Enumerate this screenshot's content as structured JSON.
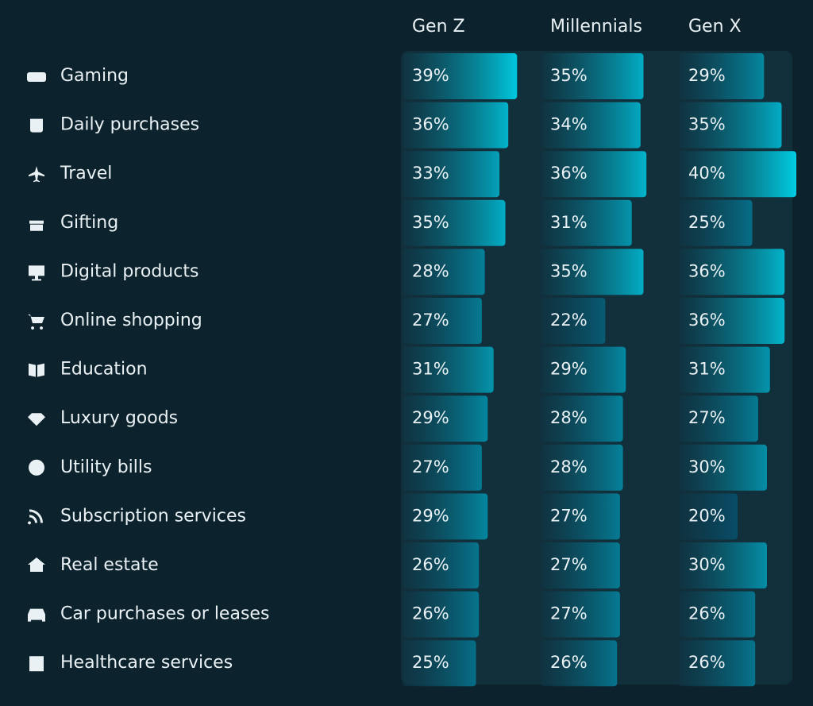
{
  "chart_data": {
    "type": "bar",
    "categories": [
      "Gaming",
      "Daily purchases",
      "Travel",
      "Gifting",
      "Digital products",
      "Online shopping",
      "Education",
      "Luxury goods",
      "Utility bills",
      "Subscription services",
      "Real estate",
      "Car purchases or leases",
      "Healthcare services"
    ],
    "series": [
      {
        "name": "Gen Z",
        "values": [
          39,
          36,
          33,
          35,
          28,
          27,
          31,
          29,
          27,
          29,
          26,
          26,
          25
        ],
        "value_labels": [
          "39%",
          "36%",
          "33%",
          "35%",
          "28%",
          "27%",
          "31%",
          "29%",
          "27%",
          "29%",
          "26%",
          "26%",
          "25%"
        ]
      },
      {
        "name": "Millennials",
        "values": [
          35,
          34,
          36,
          31,
          35,
          22,
          29,
          28,
          28,
          27,
          27,
          27,
          26
        ],
        "value_labels": [
          "35%",
          "34%",
          "36%",
          "31%",
          "35%",
          "22%",
          "29%",
          "28%",
          "28%",
          "27%",
          "27%",
          "27%",
          "26%"
        ]
      },
      {
        "name": "Gen X",
        "values": [
          29,
          35,
          40,
          25,
          36,
          36,
          31,
          27,
          30,
          20,
          30,
          26,
          26
        ],
        "value_labels": [
          "29%",
          "35%",
          "40%",
          "25%",
          "36%",
          "36%",
          "31%",
          "27%",
          "30%",
          "20%",
          "30%",
          "26%",
          "26%"
        ]
      }
    ]
  }
}
